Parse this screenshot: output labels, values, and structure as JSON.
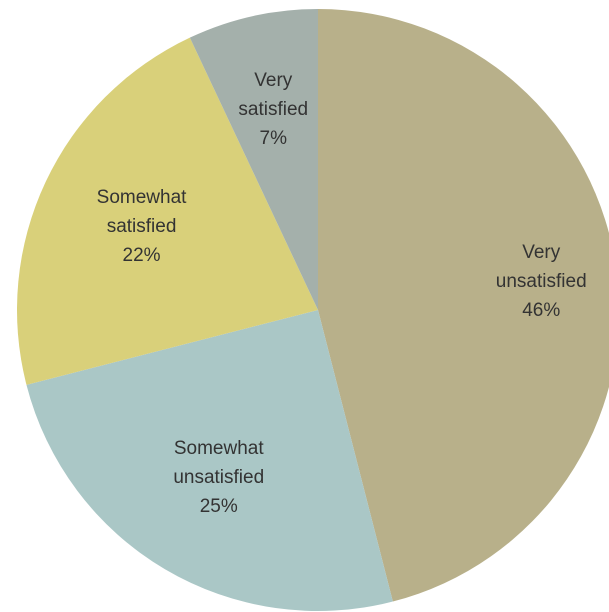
{
  "chart_data": {
    "type": "pie",
    "slices": [
      {
        "label_lines": [
          "Very",
          "unsatisfied"
        ],
        "value": 46,
        "value_label": "46%",
        "color": "#b8b08a"
      },
      {
        "label_lines": [
          "Somewhat",
          "unsatisfied"
        ],
        "value": 25,
        "value_label": "25%",
        "color": "#aac7c6"
      },
      {
        "label_lines": [
          "Somewhat",
          "satisfied"
        ],
        "value": 22,
        "value_label": "22%",
        "color": "#d9d07a"
      },
      {
        "label_lines": [
          "Very",
          "satisfied"
        ],
        "value": 7,
        "value_label": "7%",
        "color": "#a4b0ab"
      }
    ],
    "start_angle_deg": 0,
    "direction": "clockwise"
  }
}
